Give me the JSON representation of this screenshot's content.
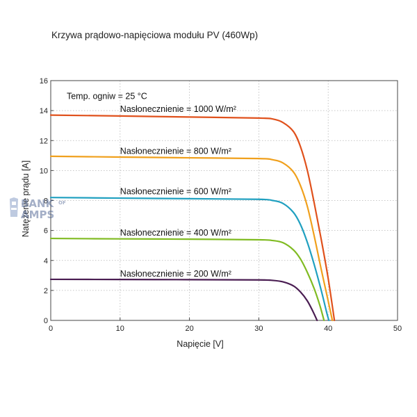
{
  "chart_data": {
    "type": "line",
    "title": "Krzywa prądowo-napięciowa modułu PV (460Wp)",
    "xlabel": "Napięcie  [V]",
    "ylabel": "Natężenie prądu  [A]",
    "xlim": [
      0,
      50
    ],
    "ylim": [
      0,
      16
    ],
    "xticks": [
      0,
      10,
      20,
      30,
      40,
      50
    ],
    "yticks": [
      0,
      2,
      4,
      6,
      8,
      10,
      12,
      14,
      16
    ],
    "grid": true,
    "annotations": [
      {
        "text": "Temp. ogniw = 25 °C",
        "x": 2.3,
        "y": 15.0
      }
    ],
    "series": [
      {
        "name": "Nasłonecznienie = 1000 W/m²",
        "color": "#e0511c",
        "label_pos": [
          10.0,
          14.1
        ],
        "points": [
          [
            0,
            13.7
          ],
          [
            10,
            13.64
          ],
          [
            20,
            13.57
          ],
          [
            30,
            13.5
          ],
          [
            32,
            13.44
          ],
          [
            33.5,
            13.2
          ],
          [
            35,
            12.6
          ],
          [
            36,
            11.6
          ],
          [
            37,
            10.0
          ],
          [
            38,
            7.8
          ],
          [
            39,
            5.4
          ],
          [
            40,
            2.8
          ],
          [
            40.9,
            0
          ]
        ]
      },
      {
        "name": "Nasłonecznienie = 800 W/m²",
        "color": "#f0a01c",
        "label_pos": [
          10.0,
          11.3
        ],
        "points": [
          [
            0,
            10.95
          ],
          [
            10,
            10.9
          ],
          [
            20,
            10.85
          ],
          [
            30,
            10.8
          ],
          [
            32,
            10.72
          ],
          [
            33.5,
            10.5
          ],
          [
            35,
            9.9
          ],
          [
            36,
            9.0
          ],
          [
            37,
            7.6
          ],
          [
            38,
            5.6
          ],
          [
            39,
            3.4
          ],
          [
            40,
            1.3
          ],
          [
            40.6,
            0
          ]
        ]
      },
      {
        "name": "Nasłonecznienie = 600 W/m²",
        "color": "#20a0c0",
        "label_pos": [
          10.0,
          8.6
        ],
        "points": [
          [
            0,
            8.2
          ],
          [
            10,
            8.16
          ],
          [
            20,
            8.12
          ],
          [
            30,
            8.08
          ],
          [
            32,
            8.0
          ],
          [
            33.5,
            7.8
          ],
          [
            35,
            7.2
          ],
          [
            36,
            6.4
          ],
          [
            37,
            5.2
          ],
          [
            38,
            3.7
          ],
          [
            39,
            2.0
          ],
          [
            39.8,
            0.5
          ],
          [
            40.1,
            0
          ]
        ]
      },
      {
        "name": "Nasłonecznienie = 400 W/m²",
        "color": "#80bb22",
        "label_pos": [
          10.0,
          5.85
        ],
        "points": [
          [
            0,
            5.47
          ],
          [
            10,
            5.44
          ],
          [
            20,
            5.42
          ],
          [
            30,
            5.38
          ],
          [
            32,
            5.33
          ],
          [
            33.5,
            5.18
          ],
          [
            35,
            4.7
          ],
          [
            36,
            4.1
          ],
          [
            37,
            3.2
          ],
          [
            38,
            2.1
          ],
          [
            38.8,
            1.0
          ],
          [
            39.4,
            0
          ]
        ]
      },
      {
        "name": "Nasłonecznienie = 200 W/m²",
        "color": "#4a1d52",
        "label_pos": [
          10.0,
          3.1
        ],
        "points": [
          [
            0,
            2.74
          ],
          [
            10,
            2.73
          ],
          [
            20,
            2.72
          ],
          [
            30,
            2.7
          ],
          [
            32,
            2.67
          ],
          [
            33.5,
            2.57
          ],
          [
            35,
            2.3
          ],
          [
            36,
            1.9
          ],
          [
            37,
            1.3
          ],
          [
            37.8,
            0.6
          ],
          [
            38.4,
            0
          ]
        ]
      }
    ]
  },
  "watermark": {
    "line1": "BANK",
    "line1_small": "OF",
    "line2": "AMPS"
  }
}
